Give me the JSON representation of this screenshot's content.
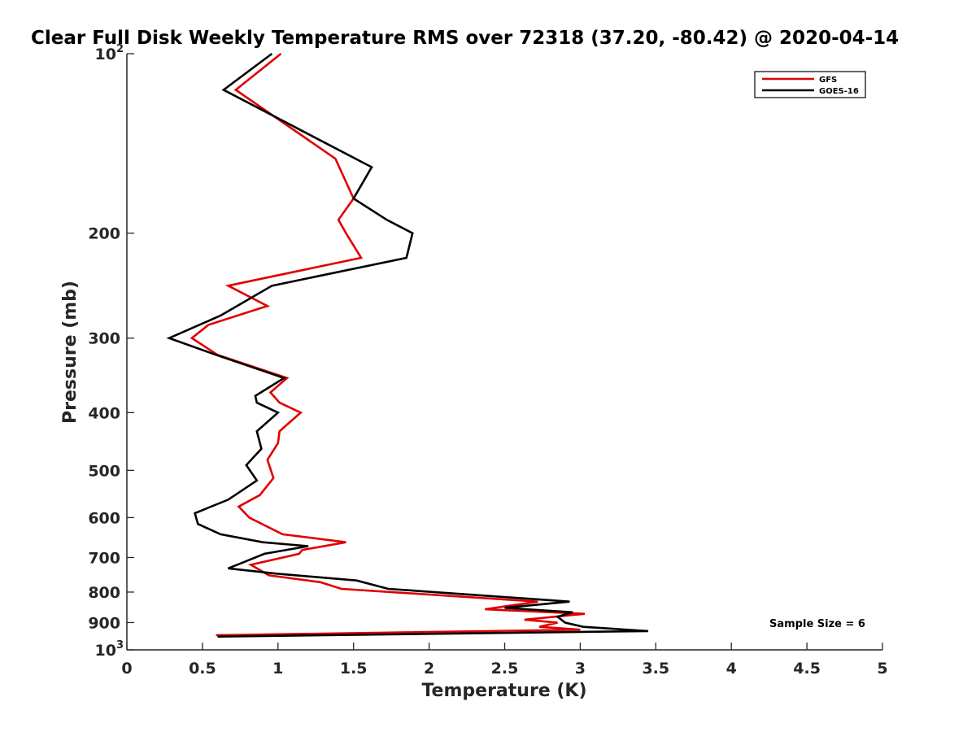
{
  "chart_data": {
    "type": "line",
    "title": "Clear Full Disk Weekly Temperature RMS over 72318 (37.20, -80.42) @ 2020-04-14",
    "xlabel": "Temperature (K)",
    "ylabel": "Pressure (mb)",
    "xlim": [
      0,
      5
    ],
    "ylim": [
      100,
      1000
    ],
    "y_scale": "log",
    "y_reversed": true,
    "grid": false,
    "legend_position": "top-right",
    "x_ticks": [
      0,
      0.5,
      1,
      1.5,
      2,
      2.5,
      3,
      3.5,
      4,
      4.5,
      5
    ],
    "x_tick_labels": [
      "0",
      "0.5",
      "1",
      "1.5",
      "2",
      "2.5",
      "3",
      "3.5",
      "4",
      "4.5",
      "5"
    ],
    "y_ticks": [
      100,
      200,
      300,
      400,
      500,
      600,
      700,
      800,
      900,
      1000
    ],
    "y_tick_labels": [
      "10^2",
      "200",
      "300",
      "400",
      "500",
      "600",
      "700",
      "800",
      "900",
      "10^3"
    ],
    "series": [
      {
        "name": "GFS",
        "color": "#e00000",
        "points": [
          [
            1.02,
            100
          ],
          [
            0.72,
            115
          ],
          [
            1.38,
            150
          ],
          [
            1.5,
            175
          ],
          [
            1.4,
            190
          ],
          [
            1.45,
            200
          ],
          [
            1.55,
            220
          ],
          [
            0.67,
            245
          ],
          [
            0.93,
            265
          ],
          [
            0.54,
            285
          ],
          [
            0.43,
            300
          ],
          [
            0.6,
            320
          ],
          [
            1.06,
            350
          ],
          [
            0.95,
            370
          ],
          [
            1.01,
            385
          ],
          [
            1.15,
            400
          ],
          [
            1.01,
            430
          ],
          [
            1.0,
            450
          ],
          [
            0.93,
            480
          ],
          [
            0.97,
            515
          ],
          [
            0.88,
            550
          ],
          [
            0.74,
            575
          ],
          [
            0.81,
            600
          ],
          [
            1.03,
            640
          ],
          [
            1.45,
            660
          ],
          [
            1.16,
            680
          ],
          [
            1.14,
            690
          ],
          [
            0.82,
            720
          ],
          [
            0.94,
            750
          ],
          [
            1.28,
            770
          ],
          [
            1.42,
            790
          ],
          [
            2.72,
            830
          ],
          [
            2.37,
            855
          ],
          [
            3.03,
            870
          ],
          [
            2.63,
            890
          ],
          [
            2.85,
            900
          ],
          [
            2.73,
            915
          ],
          [
            3.0,
            925
          ],
          [
            0.59,
            945
          ]
        ]
      },
      {
        "name": "GOES-16",
        "color": "#000000",
        "points": [
          [
            0.96,
            100
          ],
          [
            0.64,
            115
          ],
          [
            1.62,
            155
          ],
          [
            1.5,
            175
          ],
          [
            1.72,
            190
          ],
          [
            1.89,
            200
          ],
          [
            1.85,
            220
          ],
          [
            0.96,
            245
          ],
          [
            0.62,
            275
          ],
          [
            0.28,
            300
          ],
          [
            0.59,
            320
          ],
          [
            1.04,
            350
          ],
          [
            0.85,
            375
          ],
          [
            0.86,
            385
          ],
          [
            1.0,
            400
          ],
          [
            0.86,
            430
          ],
          [
            0.89,
            460
          ],
          [
            0.79,
            490
          ],
          [
            0.86,
            520
          ],
          [
            0.67,
            560
          ],
          [
            0.45,
            590
          ],
          [
            0.47,
            615
          ],
          [
            0.62,
            640
          ],
          [
            0.9,
            660
          ],
          [
            1.2,
            670
          ],
          [
            0.91,
            690
          ],
          [
            0.76,
            715
          ],
          [
            0.67,
            730
          ],
          [
            0.99,
            745
          ],
          [
            1.52,
            765
          ],
          [
            1.73,
            790
          ],
          [
            2.93,
            830
          ],
          [
            2.5,
            850
          ],
          [
            2.95,
            865
          ],
          [
            2.85,
            880
          ],
          [
            2.9,
            900
          ],
          [
            3.02,
            915
          ],
          [
            3.45,
            930
          ],
          [
            0.6,
            950
          ]
        ]
      }
    ],
    "annotations": [
      "Sample Size = 6"
    ]
  }
}
